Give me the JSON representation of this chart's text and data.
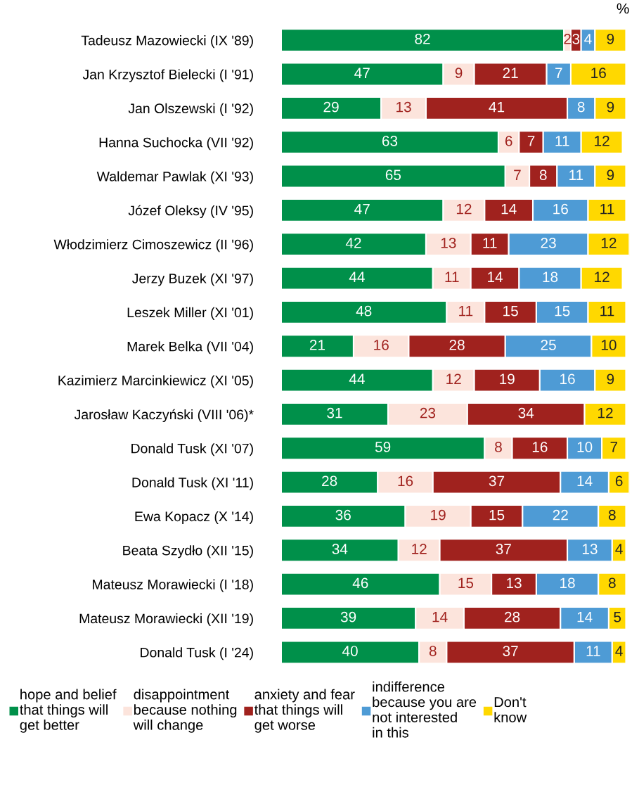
{
  "chart_data": {
    "type": "bar",
    "orientation": "horizontal",
    "stacked": true,
    "data_labels": true,
    "legend": "bottom",
    "grid": false,
    "tick_labels": "y",
    "annotations": [
      "%"
    ],
    "categories": [
      "Tadeusz Mazowiecki (IX '89)",
      "Jan Krzysztof Bielecki (I '91)",
      "Jan Olszewski (I '92)",
      "Hanna Suchocka (VII '92)",
      "Waldemar Pawlak (XI '93)",
      "Józef Oleksy (IV '95)",
      "Włodzimierz Cimoszewicz (II '96)",
      "Jerzy Buzek (XI '97)",
      "Leszek Miller (XI '01)",
      "Marek Belka (VII '04)",
      "Kazimierz Marcinkiewicz (XI '05)",
      "Jarosław Kaczyński (VIII '06)*",
      "Donald Tusk (XI '07)",
      "Donald Tusk (XI '11)",
      "Ewa Kopacz (X '14)",
      "Beata Szydło (XII '15)",
      "Mateusz Morawiecki (I '18)",
      "Mateusz Morawiecki (XII '19)",
      "Donald Tusk (I '24)"
    ],
    "series": [
      {
        "name": "hope and belief\nthat things will\nget better",
        "color": "#00904a",
        "values": [
          82,
          47,
          29,
          63,
          65,
          47,
          42,
          44,
          48,
          21,
          44,
          31,
          59,
          28,
          36,
          34,
          46,
          39,
          40
        ]
      },
      {
        "name": "disappointment\nbecause nothing\nwill change",
        "color": "#fce4dc",
        "values": [
          2,
          9,
          13,
          6,
          7,
          12,
          13,
          11,
          11,
          16,
          12,
          23,
          8,
          16,
          19,
          12,
          15,
          14,
          8
        ]
      },
      {
        "name": "anxiety and fear\nthat things will\nget worse",
        "color": "#a0221e",
        "values": [
          3,
          21,
          41,
          7,
          8,
          14,
          11,
          14,
          15,
          28,
          19,
          34,
          16,
          37,
          15,
          37,
          13,
          28,
          37
        ]
      },
      {
        "name": "indifference\nbecause you are\nnot interested\nin this",
        "color": "#4e9bd5",
        "values": [
          4,
          7,
          8,
          11,
          11,
          16,
          23,
          18,
          15,
          25,
          16,
          null,
          10,
          14,
          22,
          13,
          18,
          14,
          11
        ]
      },
      {
        "name": "Don't\nknow",
        "color": "#ffd800",
        "values": [
          9,
          16,
          9,
          12,
          9,
          11,
          12,
          12,
          11,
          10,
          9,
          12,
          7,
          6,
          8,
          4,
          8,
          5,
          4
        ]
      }
    ]
  }
}
